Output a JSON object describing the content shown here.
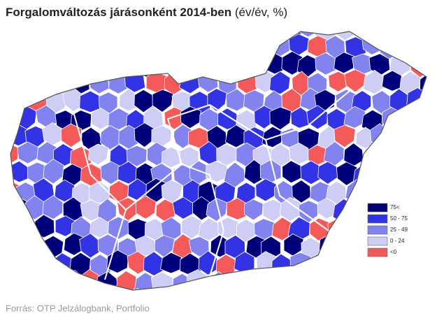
{
  "title": {
    "main": "Forgalomváltozás járásonként 2014-ben",
    "unit": "(év/év, %)"
  },
  "legend": [
    {
      "label": "75<",
      "color": "#00007a"
    },
    {
      "label": "50 - 75",
      "color": "#3333e6"
    },
    {
      "label": "25 - 49",
      "color": "#8383f0"
    },
    {
      "label": "0 - 24",
      "color": "#cdcdf5"
    },
    {
      "label": "<0",
      "color": "#f55a5a"
    }
  ],
  "source": "Forrás: OTP Jelzálogbank, Portfolio"
}
